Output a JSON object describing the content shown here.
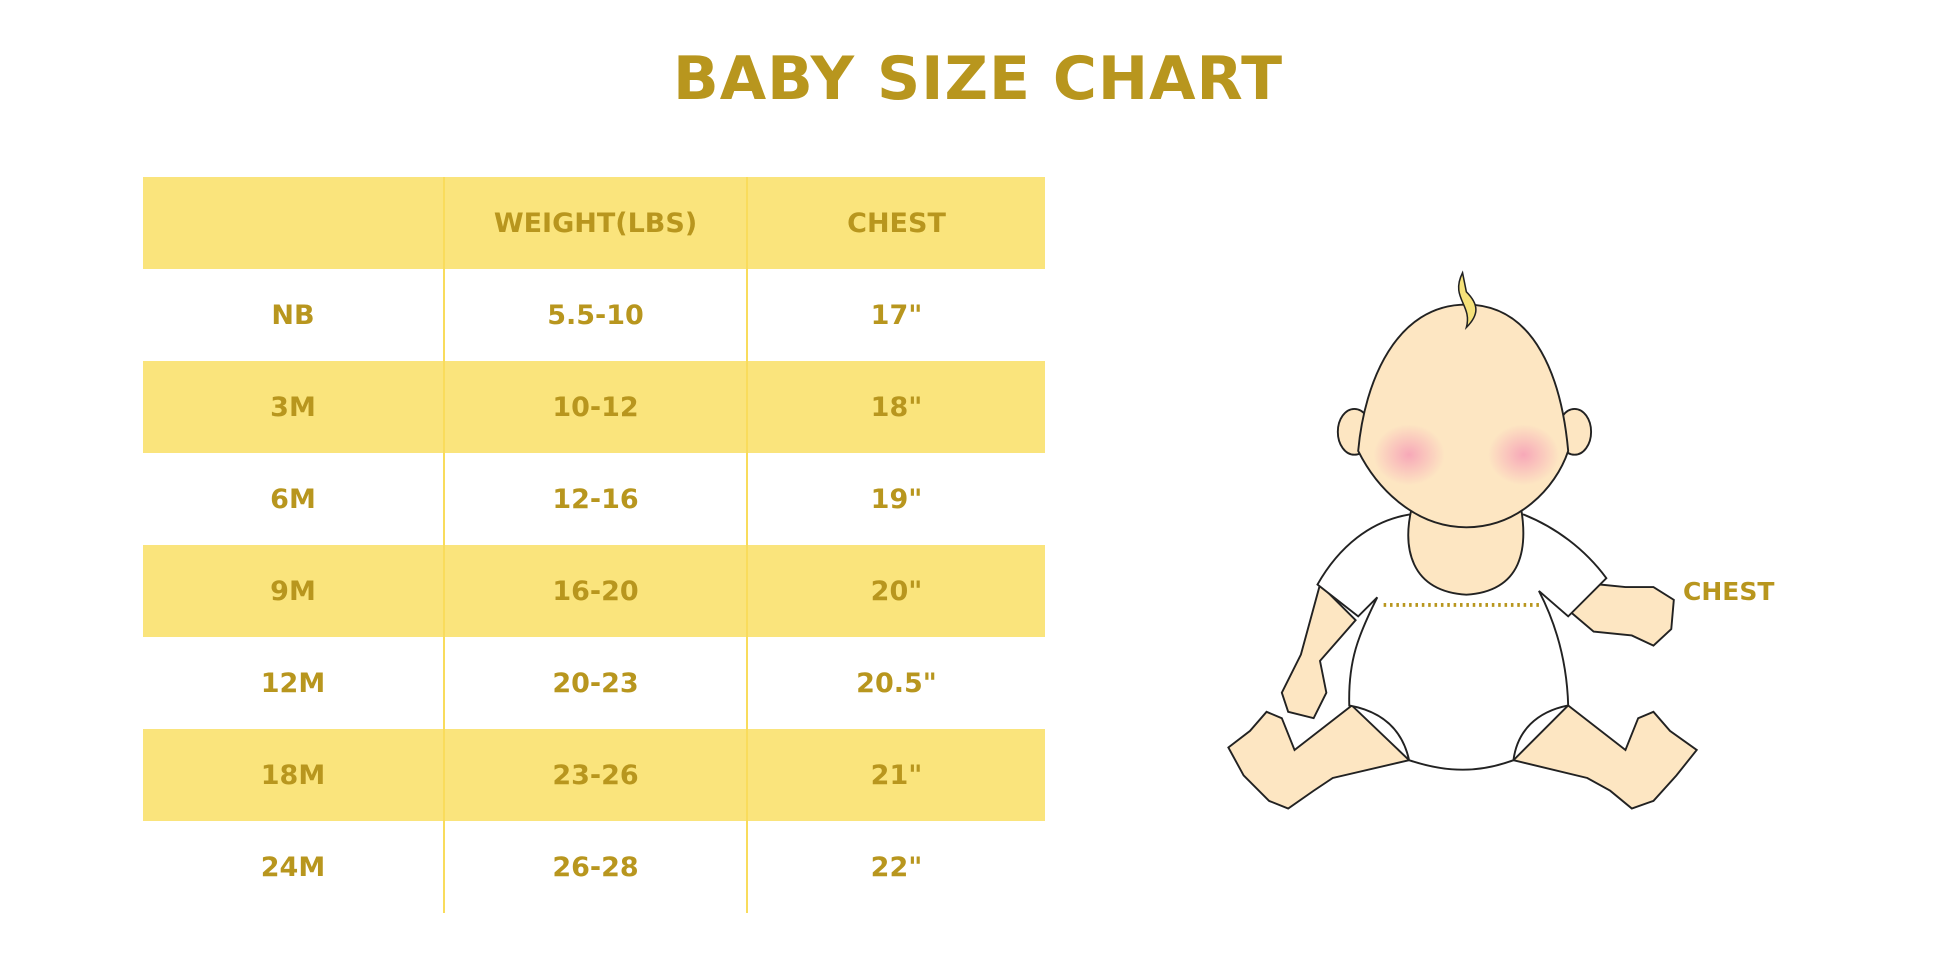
{
  "title": "BABY SIZE CHART",
  "table": {
    "headers": [
      "",
      "WEIGHT(LBS)",
      "CHEST"
    ],
    "rows": [
      [
        "NB",
        "5.5-10",
        "17\""
      ],
      [
        "3M",
        "10-12",
        "18\""
      ],
      [
        "6M",
        "12-16",
        "19\""
      ],
      [
        "9M",
        "16-20",
        "20\""
      ],
      [
        "12M",
        "20-23",
        "20.5\""
      ],
      [
        "18M",
        "23-26",
        "21\""
      ],
      [
        "24M",
        "26-28",
        "22\""
      ]
    ]
  },
  "illustration": {
    "chest_label": "CHEST",
    "icon": "baby-illustration"
  },
  "colors": {
    "text": "#b8961e",
    "band": "#fae47c",
    "divider": "#f9dc5c"
  }
}
